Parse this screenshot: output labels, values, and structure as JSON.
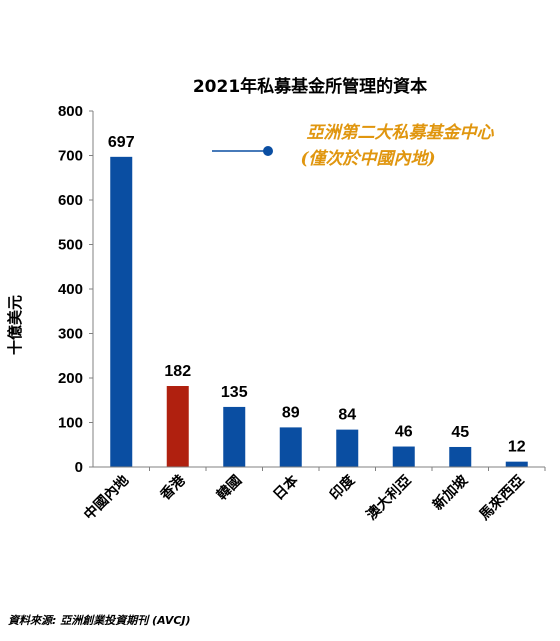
{
  "chart_data": {
    "type": "bar",
    "title": "2021年私募基金所管理的資本",
    "ylabel": "十億美元",
    "xlabel": "",
    "categories": [
      "中國內地",
      "香港",
      "韓國",
      "日本",
      "印度",
      "澳大利亞",
      "新加坡",
      "馬來西亞"
    ],
    "values": [
      697,
      182,
      135,
      89,
      84,
      46,
      45,
      12
    ],
    "highlight_index": 1,
    "ylim": [
      0,
      800
    ],
    "yticks": [
      "0",
      "100",
      "200",
      "300",
      "400",
      "500",
      "600",
      "700",
      "800"
    ],
    "grid": false,
    "legend": "none",
    "annotation": {
      "line1": "亞洲第二大私募基金中心",
      "line2": "(僅次於中國內地)"
    }
  },
  "colors": {
    "bar": "#0a4ea2",
    "highlight": "#b0200f",
    "annotation_text": "#e0960f",
    "annotation_line": "#0a4ea2",
    "axis": "#808080"
  },
  "source": "資料來源: 亞洲創業投資期刊 (AVCJ)"
}
